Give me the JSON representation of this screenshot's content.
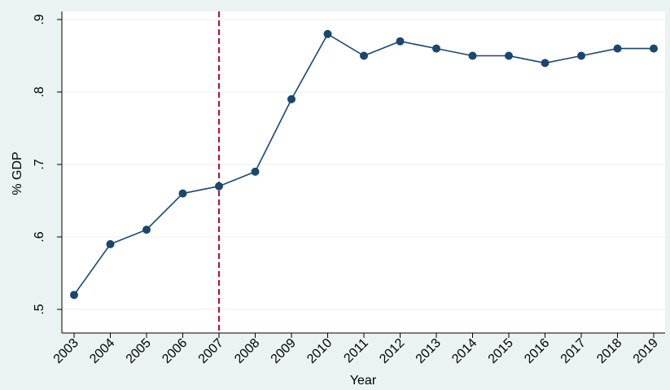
{
  "chart_data": {
    "type": "line",
    "xlabel": "Year",
    "ylabel": "% GDP",
    "x": [
      2003,
      2004,
      2005,
      2006,
      2007,
      2008,
      2009,
      2010,
      2011,
      2012,
      2013,
      2014,
      2015,
      2016,
      2017,
      2018,
      2019
    ],
    "series": [
      {
        "values": [
          0.52,
          0.59,
          0.61,
          0.66,
          0.67,
          0.69,
          0.79,
          0.88,
          0.85,
          0.87,
          0.86,
          0.85,
          0.85,
          0.84,
          0.85,
          0.86,
          0.86
        ]
      }
    ],
    "ylim": [
      0.5,
      0.9
    ],
    "yticks": [
      0.5,
      0.6,
      0.7,
      0.8,
      0.9
    ],
    "ytick_labels": [
      ".5",
      ".6",
      ".7",
      ".8",
      ".9"
    ],
    "xtick_labels": [
      "2003",
      "2004",
      "2005",
      "2006",
      "2007",
      "2008",
      "2009",
      "2010",
      "2011",
      "2012",
      "2013",
      "2014",
      "2015",
      "2016",
      "2017",
      "2018",
      "2019"
    ],
    "vline": 2007,
    "grid": true,
    "colors": {
      "line": "#1a476f",
      "marker": "#1a476f",
      "vline": "#c10534",
      "background": "#eaf2f3",
      "plot_background": "#ffffff",
      "grid": "#eaf2f3"
    }
  }
}
